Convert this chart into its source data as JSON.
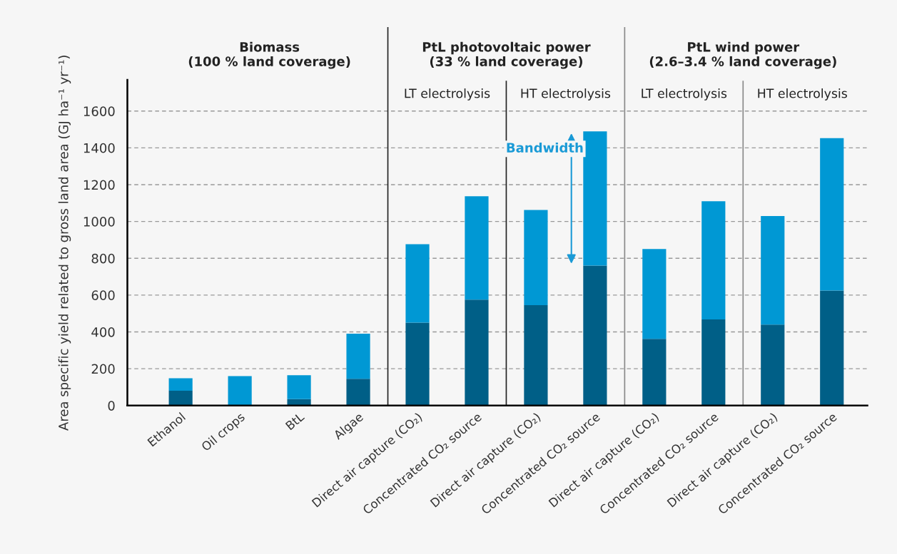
{
  "chart_data": {
    "type": "bar",
    "stacked": true,
    "ylabel": "Area specific yield related to gross land area (GJ ha⁻¹ yr⁻¹)",
    "categories": [
      "Ethanol",
      "Oil crops",
      "BtL",
      "Algae",
      "Direct air capture (CO₂)",
      "Concentrated CO₂ source",
      "Direct air capture (CO₂)",
      "Concentrated CO₂ source",
      "Direct air capture (CO₂)",
      "Concentrated CO₂ source",
      "Direct air capture (CO₂)",
      "Concentrated CO₂ source"
    ],
    "series": [
      {
        "color": "#005f87",
        "values": [
          80,
          0,
          35,
          145,
          450,
          575,
          545,
          760,
          362,
          468,
          440,
          625
        ]
      },
      {
        "color": "#0098d4",
        "values": [
          68,
          160,
          130,
          245,
          427,
          562,
          518,
          730,
          488,
          642,
          590,
          828
        ]
      }
    ],
    "ylim": [
      0,
      1770
    ],
    "yticks": [
      0,
      200,
      400,
      600,
      800,
      1000,
      1200,
      1400,
      1600
    ],
    "grid": "y",
    "annotations": [
      "Biomass\n(100 % land coverage)",
      "PtL photovoltaic power\n(33 % land coverage)",
      "PtL wind power\n(2.6–3.4 % land coverage)",
      "LT electrolysis",
      "HT electrolysis",
      "LT electrolysis",
      "HT electrolysis",
      "Bandwidth"
    ]
  }
}
